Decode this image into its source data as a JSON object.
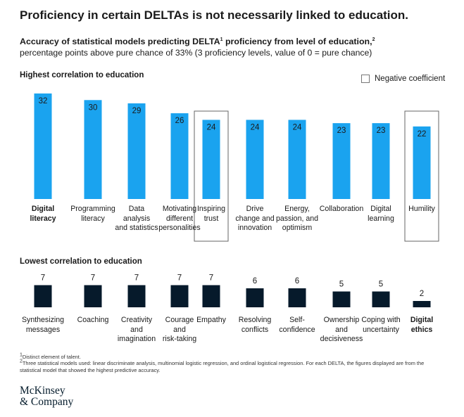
{
  "headline": "Proficiency in certain DELTAs is not necessarily linked to education.",
  "subtitle": {
    "part1": "Accuracy of statistical models predicting DELTA",
    "sup1": "1",
    "part2": " proficiency from level of education,",
    "sup2": "2",
    "line2": "percentage points above pure chance of 33% (3 proficiency levels, value of 0 = pure chance)"
  },
  "legend": {
    "label": "Negative coefficient"
  },
  "colors": {
    "high_bar": "#1aa3ef",
    "low_bar": "#061a2b",
    "outline": "#666666"
  },
  "chart_data": [
    {
      "type": "bar",
      "title": "Highest correlation to education",
      "categories": [
        "Digital\nliteracy",
        "Programming\nliteracy",
        "Data\nanalysis\nand statistics",
        "Motivating\ndifferent\npersonalities",
        "Inspiring\ntrust",
        "Drive\nchange and\ninnovation",
        "Energy,\npassion, and\noptimism",
        "Collaboration",
        "Digital\nlearning",
        "Humility"
      ],
      "values": [
        32,
        30,
        29,
        26,
        24,
        24,
        24,
        23,
        23,
        22
      ],
      "bold": [
        true,
        false,
        false,
        false,
        false,
        false,
        false,
        false,
        false,
        false
      ],
      "negative_coefficient": [
        false,
        false,
        false,
        false,
        true,
        false,
        false,
        false,
        false,
        true
      ],
      "label_position": "inside-top"
    },
    {
      "type": "bar",
      "title": "Lowest correlation to education",
      "categories": [
        "Synthesizing\nmessages",
        "Coaching",
        "Creativity\nand\nimagination",
        "Courage\nand\nrisk-taking",
        "Empathy",
        "Resolving\nconflicts",
        "Self-\nconfidence",
        "Ownership\nand\ndecisiveness",
        "Coping with\nuncertainty",
        "Digital\nethics"
      ],
      "values": [
        7,
        7,
        7,
        7,
        7,
        6,
        6,
        5,
        5,
        2
      ],
      "bold": [
        false,
        false,
        false,
        false,
        false,
        false,
        false,
        false,
        false,
        true
      ],
      "negative_coefficient": [
        false,
        false,
        false,
        false,
        false,
        false,
        false,
        false,
        false,
        false
      ],
      "label_position": "above"
    }
  ],
  "footnotes": {
    "f1_sup": "1",
    "f1": "Distinct element of talent.",
    "f2_sup": "2",
    "f2": "Three statistical models used: linear discriminate analysis, multinomial logistic regression, and ordinal logistical regression. For each DELTA, the figures displayed are from the statistical model that showed the highest predictive accuracy."
  },
  "logo": {
    "text": "McKinsey\n& Company"
  }
}
